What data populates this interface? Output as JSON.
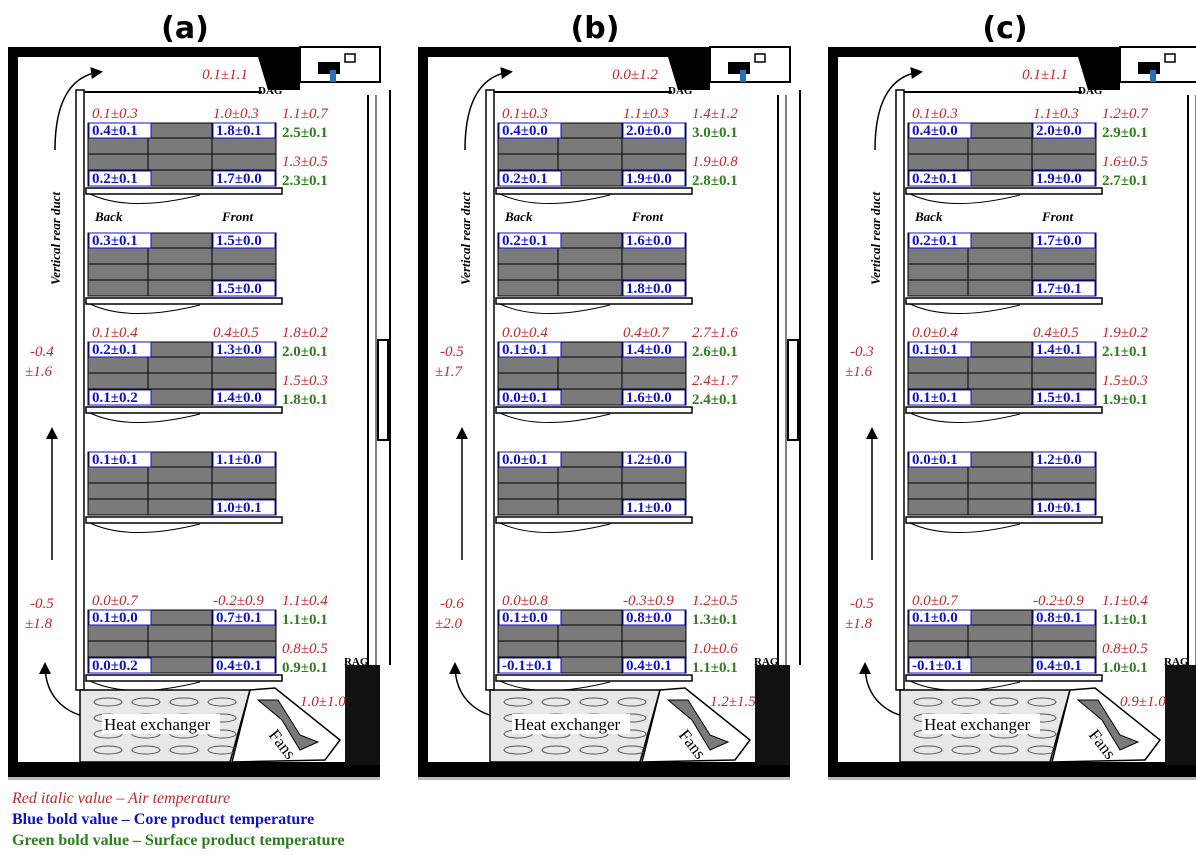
{
  "panels": [
    {
      "title": "(a)",
      "dag_air": "0.1±1.1",
      "rear_duct_label": "Vertical rear duct",
      "back_label": "Back",
      "front_label": "Front",
      "shelf1": {
        "air_back": "0.1±0.3",
        "air_front": "1.0±0.3",
        "air_side_top": "1.1±0.7",
        "core_tb": "0.4±0.1",
        "core_tf": "1.8±0.1",
        "surf_t": "2.5±0.1",
        "air_side_bot": "1.3±0.5",
        "core_bb": "0.2±0.1",
        "core_bf": "1.7±0.0",
        "surf_b": "2.3±0.1"
      },
      "shelf2": {
        "core_tb": "0.3±0.1",
        "core_tf": "1.5±0.0",
        "core_bf": "1.5±0.0"
      },
      "shelf3": {
        "air_back": "0.1±0.4",
        "air_front": "0.4±0.5",
        "air_side_top": "1.8±0.2",
        "core_tb": "0.2±0.1",
        "core_tf": "1.3±0.0",
        "surf_t": "2.0±0.1",
        "air_side_bot": "1.5±0.3",
        "core_bb": "0.1±0.2",
        "core_bf": "1.4±0.0",
        "surf_b": "1.8±0.1"
      },
      "shelf4": {
        "core_tb": "0.1±0.1",
        "core_tf": "1.1±0.0",
        "core_bf": "1.0±0.1"
      },
      "shelf5": {
        "air_back": "0.0±0.7",
        "air_front": "-0.2±0.9",
        "air_side_top": "1.1±0.4",
        "core_tb": "0.1±0.0",
        "core_tf": "0.7±0.1",
        "surf_t": "1.1±0.1",
        "air_side_bot": "0.8±0.5",
        "core_bb": "0.0±0.2",
        "core_bf": "0.4±0.1",
        "surf_b": "0.9±0.1"
      },
      "duct_upper_1": "-0.4",
      "duct_upper_2": "±1.6",
      "duct_lower_1": "-0.5",
      "duct_lower_2": "±1.8",
      "fans_air": "1.0±1.0",
      "dag_label": "DAG",
      "rag_label": "RAG",
      "heat_exchanger": "Heat exchanger",
      "fans_label": "Fans"
    },
    {
      "title": "(b)",
      "dag_air": "0.0±1.2",
      "rear_duct_label": "Vertical rear duct",
      "back_label": "Back",
      "front_label": "Front",
      "shelf1": {
        "air_back": "0.1±0.3",
        "air_front": "1.1±0.3",
        "air_side_top": "1.4±1.2",
        "core_tb": "0.4±0.0",
        "core_tf": "2.0±0.0",
        "surf_t": "3.0±0.1",
        "air_side_bot": "1.9±0.8",
        "core_bb": "0.2±0.1",
        "core_bf": "1.9±0.0",
        "surf_b": "2.8±0.1"
      },
      "shelf2": {
        "core_tb": "0.2±0.1",
        "core_tf": "1.6±0.0",
        "core_bf": "1.8±0.0"
      },
      "shelf3": {
        "air_back": "0.0±0.4",
        "air_front": "0.4±0.7",
        "air_side_top": "2.7±1.6",
        "core_tb": "0.1±0.1",
        "core_tf": "1.4±0.0",
        "surf_t": "2.6±0.1",
        "air_side_bot": "2.4±1.7",
        "core_bb": "0.0±0.1",
        "core_bf": "1.6±0.0",
        "surf_b": "2.4±0.1"
      },
      "shelf4": {
        "core_tb": "0.0±0.1",
        "core_tf": "1.2±0.0",
        "core_bf": "1.1±0.0"
      },
      "shelf5": {
        "air_back": "0.0±0.8",
        "air_front": "-0.3±0.9",
        "air_side_top": "1.2±0.5",
        "core_tb": "0.1±0.0",
        "core_tf": "0.8±0.0",
        "surf_t": "1.3±0.1",
        "air_side_bot": "1.0±0.6",
        "core_bb": "-0.1±0.1",
        "core_bf": "0.4±0.1",
        "surf_b": "1.1±0.1"
      },
      "duct_upper_1": "-0.5",
      "duct_upper_2": "±1.7",
      "duct_lower_1": "-0.6",
      "duct_lower_2": "±2.0",
      "fans_air": "1.2±1.5",
      "dag_label": "DAG",
      "rag_label": "RAG",
      "heat_exchanger": "Heat exchanger",
      "fans_label": "Fans"
    },
    {
      "title": "(c)",
      "dag_air": "0.1±1.1",
      "rear_duct_label": "Vertical rear duct",
      "back_label": "Back",
      "front_label": "Front",
      "shelf1": {
        "air_back": "0.1±0.3",
        "air_front": "1.1±0.3",
        "air_side_top": "1.2±0.7",
        "core_tb": "0.4±0.0",
        "core_tf": "2.0±0.0",
        "surf_t": "2.9±0.1",
        "air_side_bot": "1.6±0.5",
        "core_bb": "0.2±0.1",
        "core_bf": "1.9±0.0",
        "surf_b": "2.7±0.1"
      },
      "shelf2": {
        "core_tb": "0.2±0.1",
        "core_tf": "1.7±0.0",
        "core_bf": "1.7±0.1"
      },
      "shelf3": {
        "air_back": "0.0±0.4",
        "air_front": "0.4±0.5",
        "air_side_top": "1.9±0.2",
        "core_tb": "0.1±0.1",
        "core_tf": "1.4±0.1",
        "surf_t": "2.1±0.1",
        "air_side_bot": "1.5±0.3",
        "core_bb": "0.1±0.1",
        "core_bf": "1.5±0.1",
        "surf_b": "1.9±0.1"
      },
      "shelf4": {
        "core_tb": "0.0±0.1",
        "core_tf": "1.2±0.0",
        "core_bf": "1.0±0.1"
      },
      "shelf5": {
        "air_back": "0.0±0.7",
        "air_front": "-0.2±0.9",
        "air_side_top": "1.1±0.4",
        "core_tb": "0.1±0.0",
        "core_tf": "0.8±0.1",
        "surf_t": "1.1±0.1",
        "air_side_bot": "0.8±0.5",
        "core_bb": "-0.1±0.1",
        "core_bf": "0.4±0.1",
        "surf_b": "1.0±0.1"
      },
      "duct_upper_1": "-0.3",
      "duct_upper_2": "±1.6",
      "duct_lower_1": "-0.5",
      "duct_lower_2": "±1.8",
      "fans_air": "0.9±1.0",
      "dag_label": "DAG",
      "rag_label": "RAG",
      "heat_exchanger": "Heat exchanger",
      "fans_label": "Fans"
    }
  ],
  "legend": {
    "red": "Red italic value – Air temperature",
    "blue": "Blue bold value – Core product temperature",
    "green": "Green bold value – Surface product temperature"
  },
  "colors": {
    "air": "#c0282d",
    "core": "#1010c8",
    "surface": "#2e7d1f",
    "product": "#7a7a7a"
  }
}
